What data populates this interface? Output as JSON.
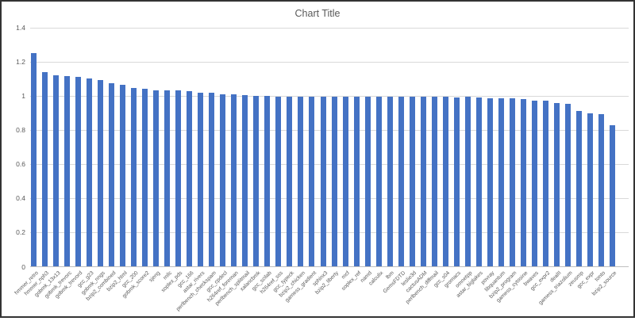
{
  "window": {
    "border_color": "#333333",
    "background": "#ffffff"
  },
  "chart_data": {
    "type": "bar",
    "title": "Chart Title",
    "xlabel": "",
    "ylabel": "",
    "legend_position": "none",
    "grid": true,
    "ylim": [
      0,
      1.4
    ],
    "ytick_interval": 0.2,
    "ytick_labels": [
      "0",
      "0.2",
      "0.4",
      "0.6",
      "0.8",
      "1",
      "1.2",
      "1.4"
    ],
    "x_label_rotation_deg": 45,
    "bar_color": "#4472c4",
    "gridline_color": "#d9d9d9",
    "axis_line_color": "#bfbfbf",
    "text_color": "#595959",
    "categories": [
      "hmmer_retro",
      "hmmer_nph3",
      "gobmk_13x13",
      "gobmk_trevorc",
      "gobmk_trevord",
      "gcc_g23",
      "gobmk_nngs",
      "bzip2_combined",
      "bzip2_html",
      "gcc_200",
      "gobmk_score2",
      "sjeng",
      "milc",
      "soplex_pds",
      "gcc_166",
      "astar_rivers",
      "perlbench_checkspam",
      "gcc_cpdecl",
      "h264ref_foreman",
      "perlbench_splitmail",
      "xalancbmk",
      "gcc_scilab",
      "h264ref_sss",
      "gcc_typeck",
      "bzip2_chicken",
      "gamess_gradient",
      "sphinx3",
      "bzip2_liberty",
      "mcf",
      "soplex_ref",
      "namd",
      "calculix",
      "lbm",
      "GemsFDTD",
      "leslie3d",
      "cactusADM",
      "perlbench_diffmail",
      "gcc_s04",
      "gromacs",
      "omnetpp",
      "astar_biglakes",
      "povray",
      "libquantum",
      "bzip2_program",
      "gamess_cytosine",
      "bwaves",
      "gcc_expr2",
      "dealII",
      "gamess_triazolium",
      "zeusmp",
      "gcc_expr",
      "tonto",
      "bzip2_source"
    ],
    "values": [
      1.253,
      1.141,
      1.122,
      1.118,
      1.111,
      1.103,
      1.094,
      1.077,
      1.066,
      1.048,
      1.043,
      1.035,
      1.031,
      1.031,
      1.027,
      1.021,
      1.019,
      1.011,
      1.011,
      1.005,
      1.001,
      1.0,
      0.998,
      0.998,
      0.997,
      0.997,
      0.996,
      0.996,
      0.996,
      0.995,
      0.995,
      0.994,
      0.994,
      0.995,
      0.997,
      0.998,
      0.997,
      0.996,
      0.993,
      0.994,
      0.99,
      0.987,
      0.985,
      0.985,
      0.983,
      0.974,
      0.971,
      0.959,
      0.955,
      0.911,
      0.899,
      0.893,
      0.831
    ]
  }
}
